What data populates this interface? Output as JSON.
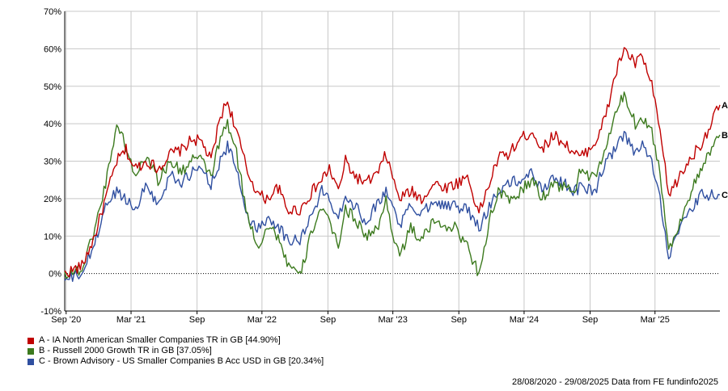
{
  "chart_data": {
    "type": "line",
    "title": "",
    "xlabel": "",
    "ylabel": "",
    "ylim": [
      -10,
      70
    ],
    "y_ticks": [
      "70%",
      "60%",
      "50%",
      "40%",
      "30%",
      "20%",
      "10%",
      "0%",
      "-10%"
    ],
    "x_ticks": [
      "Sep '20",
      "Mar '21",
      "Sep",
      "Mar '22",
      "Sep",
      "Mar '23",
      "Sep",
      "Mar '24",
      "Sep",
      "Mar '25"
    ],
    "x_range": [
      "2020-08-28",
      "2025-08-29"
    ],
    "grid": true,
    "legend_position": "bottom-left",
    "series": [
      {
        "name": "A - IA North American Smaller Companies TR in GB [44.90%]",
        "end_label": "A",
        "color": "#c00000",
        "x": [
          "2020-08-28",
          "2020-10-15",
          "2020-11-20",
          "2020-12-20",
          "2021-01-20",
          "2021-02-15",
          "2021-03-10",
          "2021-04-15",
          "2021-05-15",
          "2021-06-20",
          "2021-07-20",
          "2021-08-20",
          "2021-09-15",
          "2021-10-10",
          "2021-11-05",
          "2021-11-25",
          "2021-12-20",
          "2022-01-20",
          "2022-02-20",
          "2022-03-15",
          "2022-04-15",
          "2022-05-10",
          "2022-06-15",
          "2022-07-20",
          "2022-08-15",
          "2022-09-05",
          "2022-09-30",
          "2022-10-20",
          "2022-11-15",
          "2022-12-15",
          "2023-01-20",
          "2023-02-10",
          "2023-03-05",
          "2023-03-20",
          "2023-04-20",
          "2023-05-20",
          "2023-06-25",
          "2023-07-25",
          "2023-08-25",
          "2023-09-25",
          "2023-10-27",
          "2023-11-25",
          "2023-12-20",
          "2024-01-20",
          "2024-02-20",
          "2024-03-25",
          "2024-04-20",
          "2024-05-20",
          "2024-06-20",
          "2024-07-20",
          "2024-08-06",
          "2024-09-15",
          "2024-10-15",
          "2024-11-10",
          "2024-12-05",
          "2025-01-05",
          "2025-01-25",
          "2025-02-20",
          "2025-03-15",
          "2025-04-08",
          "2025-05-10",
          "2025-06-10",
          "2025-07-10",
          "2025-08-29"
        ],
        "values": [
          0,
          2,
          10,
          20,
          30,
          33,
          28,
          30,
          28,
          32,
          33,
          36,
          35,
          30,
          42,
          46,
          38,
          27,
          21,
          20,
          23,
          17,
          17,
          22,
          25,
          28,
          22,
          30,
          26,
          24,
          27,
          32,
          24,
          20,
          22,
          20,
          24,
          23,
          24,
          26,
          16,
          24,
          31,
          32,
          36,
          38,
          33,
          37,
          35,
          32,
          31,
          35,
          42,
          53,
          60,
          56,
          58,
          50,
          38,
          21,
          26,
          31,
          35,
          45
        ]
      },
      {
        "name": "B - Russell 2000 Growth TR in GB [37.05%]",
        "end_label": "B",
        "color": "#3c7a1e",
        "x": [
          "2020-08-28",
          "2020-10-15",
          "2020-11-20",
          "2020-12-20",
          "2021-01-20",
          "2021-02-15",
          "2021-03-10",
          "2021-04-15",
          "2021-05-15",
          "2021-06-20",
          "2021-07-20",
          "2021-08-20",
          "2021-09-15",
          "2021-10-10",
          "2021-11-05",
          "2021-11-25",
          "2021-12-20",
          "2022-01-20",
          "2022-02-20",
          "2022-03-15",
          "2022-04-15",
          "2022-05-10",
          "2022-06-15",
          "2022-07-20",
          "2022-08-15",
          "2022-09-05",
          "2022-09-30",
          "2022-10-20",
          "2022-11-15",
          "2022-12-15",
          "2023-01-20",
          "2023-02-10",
          "2023-03-05",
          "2023-03-20",
          "2023-04-20",
          "2023-05-20",
          "2023-06-25",
          "2023-07-25",
          "2023-08-25",
          "2023-09-25",
          "2023-10-27",
          "2023-11-25",
          "2023-12-20",
          "2024-01-20",
          "2024-02-20",
          "2024-03-25",
          "2024-04-20",
          "2024-05-20",
          "2024-06-20",
          "2024-07-20",
          "2024-08-06",
          "2024-09-15",
          "2024-10-15",
          "2024-11-10",
          "2024-12-05",
          "2025-01-05",
          "2025-01-25",
          "2025-02-20",
          "2025-03-15",
          "2025-04-08",
          "2025-05-10",
          "2025-06-10",
          "2025-07-10",
          "2025-08-29"
        ],
        "values": [
          0,
          1,
          12,
          24,
          40,
          34,
          26,
          32,
          25,
          30,
          27,
          31,
          30,
          26,
          36,
          40,
          32,
          15,
          7,
          13,
          10,
          3,
          -1,
          12,
          18,
          13,
          8,
          17,
          15,
          10,
          12,
          20,
          9,
          5,
          12,
          9,
          14,
          13,
          12,
          7,
          0,
          14,
          22,
          19,
          22,
          25,
          20,
          24,
          23,
          22,
          28,
          25,
          34,
          42,
          48,
          40,
          42,
          38,
          27,
          6,
          14,
          22,
          28,
          37
        ]
      },
      {
        "name": "C - Brown Advisory - US Smaller Companies B Acc USD in GB [20.34%]",
        "end_label": "C",
        "color": "#2f4fa0",
        "x": [
          "2020-08-28",
          "2020-10-15",
          "2020-11-20",
          "2020-12-20",
          "2021-01-20",
          "2021-02-15",
          "2021-03-10",
          "2021-04-15",
          "2021-05-15",
          "2021-06-20",
          "2021-07-20",
          "2021-08-20",
          "2021-09-15",
          "2021-10-10",
          "2021-11-05",
          "2021-11-25",
          "2021-12-20",
          "2022-01-20",
          "2022-02-20",
          "2022-03-15",
          "2022-04-15",
          "2022-05-10",
          "2022-06-15",
          "2022-07-20",
          "2022-08-15",
          "2022-09-05",
          "2022-09-30",
          "2022-10-20",
          "2022-11-15",
          "2022-12-15",
          "2023-01-20",
          "2023-02-10",
          "2023-03-05",
          "2023-03-20",
          "2023-04-20",
          "2023-05-20",
          "2023-06-25",
          "2023-07-25",
          "2023-08-25",
          "2023-09-25",
          "2023-10-27",
          "2023-11-25",
          "2023-12-20",
          "2024-01-20",
          "2024-02-20",
          "2024-03-25",
          "2024-04-20",
          "2024-05-20",
          "2024-06-20",
          "2024-07-20",
          "2024-08-06",
          "2024-09-15",
          "2024-10-15",
          "2024-11-10",
          "2024-12-05",
          "2025-01-05",
          "2025-01-25",
          "2025-02-20",
          "2025-03-15",
          "2025-04-08",
          "2025-05-10",
          "2025-06-10",
          "2025-07-10",
          "2025-08-29"
        ],
        "values": [
          -2,
          0,
          8,
          18,
          22,
          20,
          17,
          24,
          18,
          27,
          24,
          27,
          28,
          24,
          30,
          34,
          28,
          15,
          12,
          15,
          13,
          9,
          9,
          16,
          22,
          20,
          15,
          21,
          18,
          14,
          19,
          22,
          17,
          13,
          18,
          16,
          20,
          18,
          18,
          17,
          12,
          18,
          22,
          24,
          25,
          27,
          22,
          26,
          24,
          22,
          23,
          22,
          30,
          33,
          37,
          32,
          34,
          30,
          20,
          5,
          12,
          17,
          21,
          21
        ]
      }
    ]
  },
  "footer": {
    "text": "28/08/2020 - 29/08/2025 Data from FE fundinfo2025"
  }
}
